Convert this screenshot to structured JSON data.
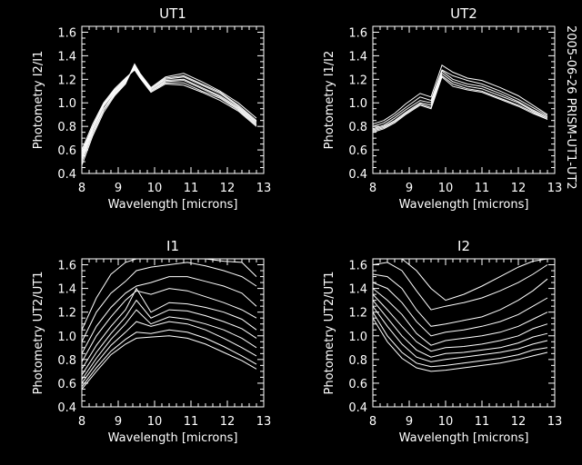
{
  "side_label": "2005-06-26 PRISM-UT1-UT2",
  "colors": {
    "background": "#000000",
    "foreground": "#ffffff"
  },
  "chart_data": [
    {
      "type": "line",
      "title": "UT1",
      "xlabel": "Wavelength [microns]",
      "ylabel": "Photometry I2/I1",
      "xlim": [
        8,
        13
      ],
      "ylim": [
        0.4,
        1.65
      ],
      "xticks": [
        "8",
        "9",
        "10",
        "11",
        "12",
        "13"
      ],
      "yticks": [
        "0.4",
        "0.6",
        "0.8",
        "1.0",
        "1.2",
        "1.4",
        "1.6"
      ],
      "x": [
        8.0,
        8.3,
        8.6,
        8.9,
        9.2,
        9.45,
        9.6,
        9.9,
        10.3,
        10.8,
        11.3,
        11.8,
        12.3,
        12.8
      ],
      "series": [
        {
          "values": [
            0.47,
            0.72,
            0.92,
            1.06,
            1.16,
            1.33,
            1.25,
            1.13,
            1.22,
            1.25,
            1.18,
            1.1,
            1.0,
            0.87
          ]
        },
        {
          "values": [
            0.5,
            0.74,
            0.94,
            1.07,
            1.17,
            1.32,
            1.24,
            1.12,
            1.21,
            1.23,
            1.16,
            1.09,
            0.98,
            0.85
          ]
        },
        {
          "values": [
            0.52,
            0.76,
            0.95,
            1.08,
            1.18,
            1.31,
            1.24,
            1.12,
            1.2,
            1.22,
            1.15,
            1.08,
            0.97,
            0.84
          ]
        },
        {
          "values": [
            0.54,
            0.78,
            0.97,
            1.09,
            1.19,
            1.3,
            1.23,
            1.11,
            1.19,
            1.2,
            1.13,
            1.06,
            0.96,
            0.83
          ]
        },
        {
          "values": [
            0.56,
            0.79,
            0.98,
            1.1,
            1.2,
            1.29,
            1.22,
            1.1,
            1.18,
            1.19,
            1.12,
            1.05,
            0.95,
            0.82
          ]
        },
        {
          "values": [
            0.58,
            0.8,
            0.99,
            1.11,
            1.2,
            1.29,
            1.22,
            1.1,
            1.17,
            1.17,
            1.1,
            1.04,
            0.94,
            0.81
          ]
        },
        {
          "values": [
            0.6,
            0.82,
            1.0,
            1.12,
            1.21,
            1.28,
            1.21,
            1.09,
            1.16,
            1.15,
            1.09,
            1.02,
            0.93,
            0.8
          ]
        }
      ]
    },
    {
      "type": "line",
      "title": "UT2",
      "xlabel": "Wavelength [microns]",
      "ylabel": "Photometry I1/I2",
      "xlim": [
        8,
        13
      ],
      "ylim": [
        0.4,
        1.65
      ],
      "xticks": [
        "8",
        "9",
        "10",
        "11",
        "12",
        "13"
      ],
      "yticks": [
        "0.4",
        "0.6",
        "0.8",
        "1.0",
        "1.2",
        "1.4",
        "1.6"
      ],
      "x": [
        8.0,
        8.3,
        8.6,
        8.9,
        9.3,
        9.6,
        9.9,
        10.2,
        10.6,
        11.0,
        11.5,
        12.0,
        12.4,
        12.8
      ],
      "series": [
        {
          "values": [
            0.82,
            0.85,
            0.91,
            0.99,
            1.08,
            1.05,
            1.32,
            1.26,
            1.21,
            1.19,
            1.13,
            1.06,
            0.98,
            0.9
          ]
        },
        {
          "values": [
            0.8,
            0.83,
            0.89,
            0.96,
            1.05,
            1.02,
            1.28,
            1.23,
            1.19,
            1.16,
            1.1,
            1.03,
            0.96,
            0.89
          ]
        },
        {
          "values": [
            0.78,
            0.81,
            0.87,
            0.94,
            1.02,
            1.0,
            1.27,
            1.2,
            1.16,
            1.14,
            1.08,
            1.01,
            0.94,
            0.88
          ]
        },
        {
          "values": [
            0.77,
            0.8,
            0.85,
            0.92,
            1.0,
            0.98,
            1.25,
            1.18,
            1.14,
            1.12,
            1.06,
            1.0,
            0.93,
            0.87
          ]
        },
        {
          "values": [
            0.76,
            0.79,
            0.84,
            0.91,
            0.99,
            0.96,
            1.23,
            1.16,
            1.12,
            1.1,
            1.04,
            0.98,
            0.92,
            0.86
          ]
        },
        {
          "values": [
            0.75,
            0.78,
            0.83,
            0.9,
            0.98,
            0.95,
            1.22,
            1.14,
            1.11,
            1.09,
            1.03,
            0.97,
            0.91,
            0.86
          ]
        }
      ]
    },
    {
      "type": "line",
      "title": "I1",
      "xlabel": "Wavelength [microns]",
      "ylabel": "Photometry UT2/UT1",
      "xlim": [
        8,
        13
      ],
      "ylim": [
        0.4,
        1.65
      ],
      "xticks": [
        "8",
        "9",
        "10",
        "11",
        "12",
        "13"
      ],
      "yticks": [
        "0.4",
        "0.6",
        "0.8",
        "1.0",
        "1.2",
        "1.4",
        "1.6"
      ],
      "x": [
        8.0,
        8.4,
        8.8,
        9.2,
        9.5,
        9.9,
        10.4,
        10.9,
        11.4,
        11.9,
        12.4,
        12.8
      ],
      "series": [
        {
          "values": [
            1.05,
            1.32,
            1.52,
            1.62,
            1.65,
            1.65,
            1.65,
            1.65,
            1.65,
            1.63,
            1.62,
            1.5
          ]
        },
        {
          "values": [
            0.95,
            1.2,
            1.36,
            1.46,
            1.55,
            1.58,
            1.6,
            1.62,
            1.59,
            1.55,
            1.5,
            1.42
          ]
        },
        {
          "values": [
            0.85,
            1.08,
            1.24,
            1.36,
            1.42,
            1.45,
            1.5,
            1.5,
            1.46,
            1.42,
            1.36,
            1.25
          ]
        },
        {
          "values": [
            0.78,
            1.0,
            1.16,
            1.3,
            1.38,
            1.35,
            1.4,
            1.38,
            1.33,
            1.28,
            1.22,
            1.15
          ]
        },
        {
          "values": [
            0.72,
            0.92,
            1.08,
            1.22,
            1.4,
            1.2,
            1.28,
            1.27,
            1.24,
            1.2,
            1.14,
            1.05
          ]
        },
        {
          "values": [
            0.67,
            0.86,
            1.02,
            1.16,
            1.3,
            1.15,
            1.22,
            1.21,
            1.17,
            1.12,
            1.06,
            0.98
          ]
        },
        {
          "values": [
            0.63,
            0.81,
            0.97,
            1.1,
            1.22,
            1.1,
            1.16,
            1.14,
            1.1,
            1.05,
            0.98,
            0.9
          ]
        },
        {
          "values": [
            0.6,
            0.77,
            0.92,
            1.03,
            1.12,
            1.08,
            1.12,
            1.1,
            1.05,
            0.98,
            0.9,
            0.83
          ]
        },
        {
          "values": [
            0.57,
            0.73,
            0.87,
            0.97,
            1.03,
            1.02,
            1.05,
            1.03,
            0.98,
            0.91,
            0.83,
            0.76
          ]
        },
        {
          "values": [
            0.55,
            0.7,
            0.84,
            0.93,
            0.98,
            0.99,
            1.0,
            0.98,
            0.93,
            0.86,
            0.79,
            0.72
          ]
        }
      ]
    },
    {
      "type": "line",
      "title": "I2",
      "xlabel": "Wavelength [microns]",
      "ylabel": "Photometry UT2/UT1",
      "xlim": [
        8,
        13
      ],
      "ylim": [
        0.4,
        1.65
      ],
      "xticks": [
        "8",
        "9",
        "10",
        "11",
        "12",
        "13"
      ],
      "yticks": [
        "0.4",
        "0.6",
        "0.8",
        "1.0",
        "1.2",
        "1.4",
        "1.6"
      ],
      "x": [
        8.0,
        8.4,
        8.8,
        9.2,
        9.6,
        10.0,
        10.5,
        11.0,
        11.5,
        12.0,
        12.4,
        12.8
      ],
      "series": [
        {
          "values": [
            1.65,
            1.65,
            1.65,
            1.55,
            1.4,
            1.3,
            1.35,
            1.42,
            1.5,
            1.58,
            1.63,
            1.65
          ]
        },
        {
          "values": [
            1.6,
            1.62,
            1.55,
            1.38,
            1.22,
            1.25,
            1.28,
            1.32,
            1.38,
            1.45,
            1.52,
            1.6
          ]
        },
        {
          "values": [
            1.52,
            1.5,
            1.4,
            1.22,
            1.08,
            1.1,
            1.13,
            1.16,
            1.22,
            1.3,
            1.38,
            1.48
          ]
        },
        {
          "values": [
            1.45,
            1.4,
            1.28,
            1.12,
            1.0,
            1.03,
            1.05,
            1.08,
            1.12,
            1.18,
            1.25,
            1.32
          ]
        },
        {
          "values": [
            1.4,
            1.3,
            1.18,
            1.02,
            0.92,
            0.96,
            0.98,
            1.0,
            1.03,
            1.08,
            1.14,
            1.2
          ]
        },
        {
          "values": [
            1.35,
            1.22,
            1.08,
            0.95,
            0.87,
            0.9,
            0.91,
            0.93,
            0.96,
            1.0,
            1.06,
            1.1
          ]
        },
        {
          "values": [
            1.3,
            1.15,
            1.0,
            0.88,
            0.82,
            0.85,
            0.86,
            0.88,
            0.9,
            0.94,
            0.99,
            1.02
          ]
        },
        {
          "values": [
            1.25,
            1.08,
            0.93,
            0.82,
            0.78,
            0.8,
            0.82,
            0.84,
            0.86,
            0.89,
            0.93,
            0.96
          ]
        },
        {
          "values": [
            1.2,
            1.0,
            0.86,
            0.77,
            0.74,
            0.75,
            0.77,
            0.79,
            0.81,
            0.84,
            0.88,
            0.9
          ]
        },
        {
          "values": [
            1.15,
            0.95,
            0.81,
            0.73,
            0.7,
            0.71,
            0.73,
            0.75,
            0.77,
            0.8,
            0.83,
            0.86
          ]
        }
      ]
    }
  ]
}
